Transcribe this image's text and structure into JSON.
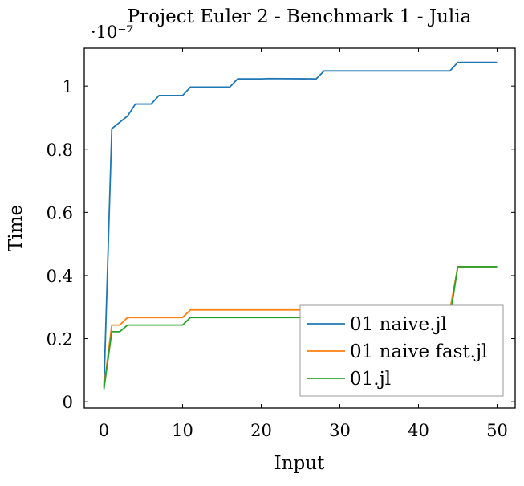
{
  "chart_data": {
    "type": "line",
    "title": "Project Euler 2 - Benchmark 1 - Julia",
    "xlabel": "Input",
    "ylabel": "Time",
    "y_scale_note": "·10⁻⁷",
    "y_multiplier": 1e-07,
    "xlim": [
      -2.5,
      52.3
    ],
    "ylim": [
      -0.02,
      1.12
    ],
    "x_ticks": [
      0,
      10,
      20,
      30,
      40,
      50
    ],
    "y_ticks": [
      0,
      0.2,
      0.4,
      0.6,
      0.8,
      1
    ],
    "y_tick_labels": [
      "0",
      "0.2",
      "0.4",
      "0.6",
      "0.8",
      "1"
    ],
    "legend_position": "bottom-right",
    "grid": false,
    "series": [
      {
        "name": "01 naive.jl",
        "color": "#1f77b4",
        "points": [
          [
            0,
            0.045
          ],
          [
            1,
            0.865
          ],
          [
            2,
            0.885
          ],
          [
            3,
            0.905
          ],
          [
            4,
            0.943
          ],
          [
            5,
            0.943
          ],
          [
            6,
            0.943
          ],
          [
            7,
            0.97
          ],
          [
            8,
            0.97
          ],
          [
            9,
            0.97
          ],
          [
            10,
            0.97
          ],
          [
            11,
            0.997
          ],
          [
            12,
            0.997
          ],
          [
            16,
            0.997
          ],
          [
            17,
            1.023
          ],
          [
            20,
            1.023
          ],
          [
            21,
            1.024
          ],
          [
            27,
            1.023
          ],
          [
            28,
            1.048
          ],
          [
            44,
            1.048
          ],
          [
            45,
            1.075
          ],
          [
            50,
            1.075
          ]
        ]
      },
      {
        "name": "01 naive fast.jl",
        "color": "#ff7f0e",
        "points": [
          [
            0,
            0.045
          ],
          [
            1,
            0.243
          ],
          [
            2,
            0.243
          ],
          [
            3,
            0.267
          ],
          [
            10,
            0.267
          ],
          [
            11,
            0.291
          ],
          [
            26,
            0.291
          ],
          [
            44,
            0.291
          ],
          [
            45,
            0.428
          ],
          [
            50,
            0.428
          ]
        ]
      },
      {
        "name": "01.jl",
        "color": "#2ca02c",
        "points": [
          [
            0,
            0.04
          ],
          [
            1,
            0.222
          ],
          [
            2,
            0.222
          ],
          [
            3,
            0.243
          ],
          [
            10,
            0.243
          ],
          [
            11,
            0.267
          ],
          [
            26,
            0.267
          ],
          [
            44,
            0.267
          ],
          [
            45,
            0.428
          ],
          [
            50,
            0.428
          ]
        ]
      }
    ]
  }
}
